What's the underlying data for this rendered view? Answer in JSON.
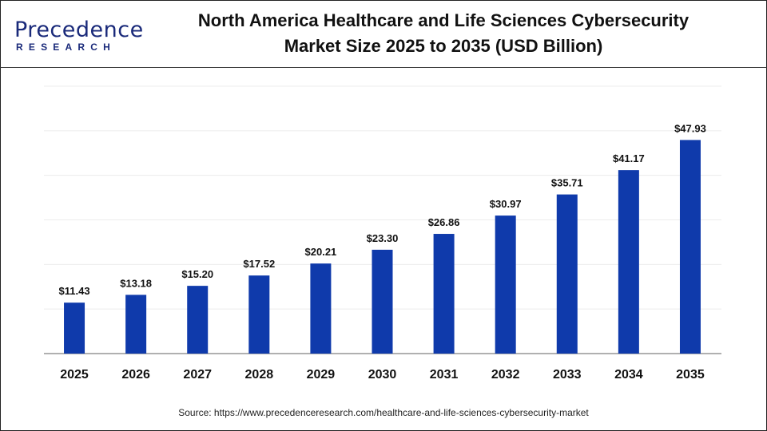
{
  "header": {
    "logo_text": "Precedence",
    "logo_subtext": "RESEARCH",
    "title_line1": "North America Healthcare and Life Sciences Cybersecurity",
    "title_line2": "Market Size 2025 to 2035 (USD Billion)"
  },
  "chart_data": {
    "type": "bar",
    "title": "North America Healthcare and Life Sciences Cybersecurity Market Size 2025 to 2035 (USD Billion)",
    "categories": [
      "2025",
      "2026",
      "2027",
      "2028",
      "2029",
      "2030",
      "2031",
      "2032",
      "2033",
      "2034",
      "2035"
    ],
    "values": [
      11.43,
      13.18,
      15.2,
      17.52,
      20.21,
      23.3,
      26.86,
      30.97,
      35.71,
      41.17,
      47.93
    ],
    "data_labels": [
      "$11.43",
      "$13.18",
      "$15.20",
      "$17.52",
      "$20.21",
      "$23.30",
      "$26.86",
      "$30.97",
      "$35.71",
      "$41.17",
      "$47.93"
    ],
    "xlabel": "",
    "ylabel": "",
    "ylim": [
      0,
      60
    ],
    "grid": true,
    "y_axis_labels_shown": false,
    "bar_color": "#0f3aab"
  },
  "source": "Source: https://www.precedenceresearch.com/healthcare-and-life-sciences-cybersecurity-market"
}
